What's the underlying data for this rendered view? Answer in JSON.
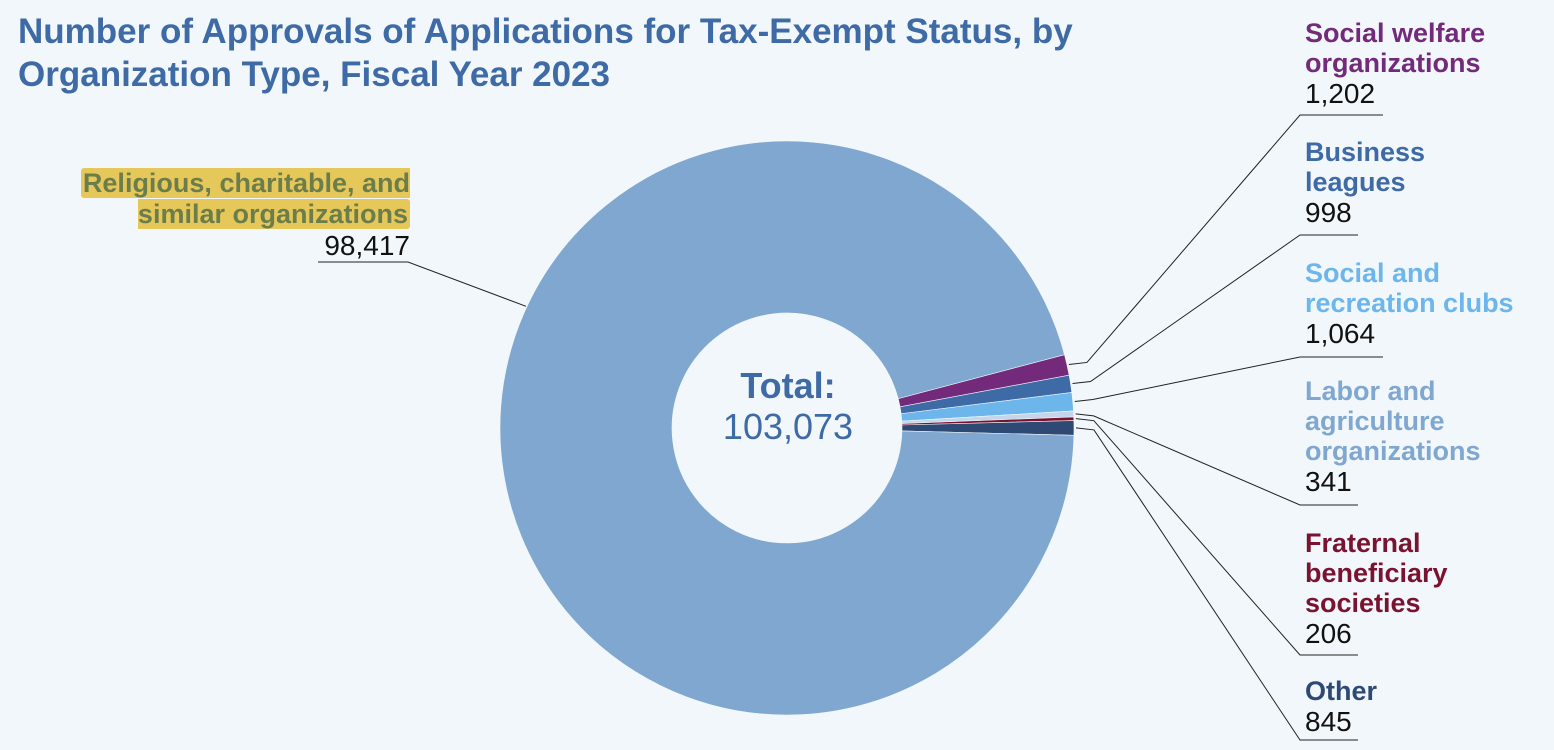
{
  "chart_data": {
    "type": "pie",
    "donut": true,
    "title": "Number of Approvals of Applications for Tax-Exempt Status, by Organization Type, Fiscal Year 2023",
    "center_label": "Total:",
    "center_value": "103,073",
    "slices": [
      {
        "label": "Social welfare organizations",
        "value": 1202,
        "display": "1,202",
        "color": "#742a7a"
      },
      {
        "label": "Business leagues",
        "value": 998,
        "display": "998",
        "color": "#3e6aa6"
      },
      {
        "label": "Social and recreation clubs",
        "value": 1064,
        "display": "1,064",
        "color": "#6cb6ec"
      },
      {
        "label": "Labor and agriculture organizations",
        "value": 341,
        "display": "341",
        "color": "#c3d6ea"
      },
      {
        "label": "Fraternal beneficiary societies",
        "value": 206,
        "display": "206",
        "color": "#7a1330"
      },
      {
        "label": "Other",
        "value": 845,
        "display": "845",
        "color": "#2e4a74"
      },
      {
        "label": "Religious, charitable, and similar organizations",
        "value": 98417,
        "display": "98,417",
        "color": "#7fa7cf",
        "highlighted": true
      }
    ],
    "label_colors": {
      "Social welfare organizations": "#742a7a",
      "Business leagues": "#3e6aa6",
      "Social and recreation clubs": "#6cb6ec",
      "Labor and agriculture organizations": "#7fa7cf",
      "Fraternal beneficiary societies": "#7a1330",
      "Other": "#2e4a74"
    },
    "highlight_color": "#e6c85a"
  }
}
